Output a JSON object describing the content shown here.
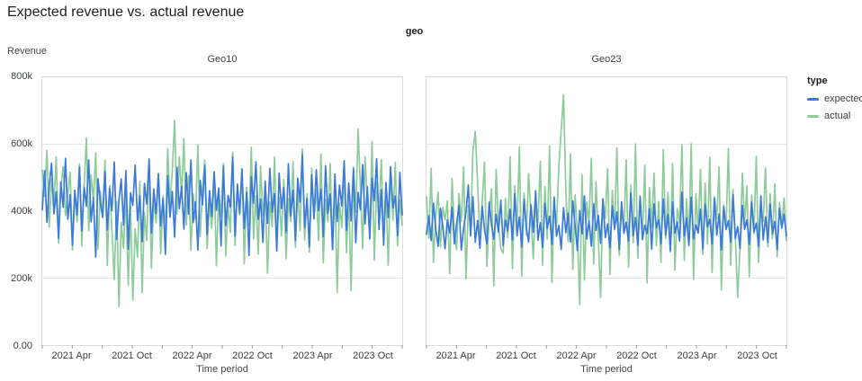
{
  "header": {
    "title": "Expected revenue vs. actual revenue"
  },
  "chart_data": {
    "type": "line",
    "title": "Expected revenue vs. actual revenue",
    "facet_field": "geo",
    "xlabel": "Time period",
    "ylabel": "Revenue",
    "ylim": [
      0,
      800000
    ],
    "y_max_k": 800,
    "value_unit": "thousands (k)",
    "x_domain": {
      "start": "2021 Jan",
      "end": "2024 Jan",
      "months": 36,
      "frequency": "weekly"
    },
    "x_domain_months": 36,
    "grid": "horizontal-only",
    "legend_position": "right",
    "y_ticks": [
      {
        "v": 800,
        "label": "800k"
      },
      {
        "v": 600,
        "label": "600k"
      },
      {
        "v": 400,
        "label": "400k"
      },
      {
        "v": 200,
        "label": "200k"
      },
      {
        "v": 0,
        "label": "0.00"
      }
    ],
    "x_ticks": [
      {
        "m": 3,
        "label": "2021 Apr"
      },
      {
        "m": 9,
        "label": "2021 Oct"
      },
      {
        "m": 15,
        "label": "2022 Apr"
      },
      {
        "m": 21,
        "label": "2022 Oct"
      },
      {
        "m": 27,
        "label": "2023 Apr"
      },
      {
        "m": 33,
        "label": "2023 Oct"
      }
    ],
    "x_minor_ticks_months": [
      0,
      3,
      6,
      9,
      12,
      15,
      18,
      21,
      24,
      27,
      30,
      33,
      36
    ],
    "legend": {
      "title": "type",
      "entries": [
        {
          "label": "expected",
          "color": "#3b79db"
        },
        {
          "label": "actual",
          "color": "#8ecb9b"
        }
      ]
    },
    "facets": [
      {
        "title": "Geo10",
        "series": [
          {
            "name": "expected",
            "values": [
              404,
              521,
              367,
              476,
              543,
              392,
              458,
              319,
              487,
              412,
              558,
              376,
              449,
              298,
              463,
              389,
              532,
              341,
              472,
              415,
              553,
              368,
              441,
              263,
              497,
              426,
              381,
              519,
              344,
              468,
              402,
              547,
              316,
              433,
              496,
              359,
              521,
              287,
              455,
              417,
              538,
              372,
              446,
              309,
              483,
              421,
              556,
              334,
              467,
              393,
              512,
              356,
              438,
              271,
              506,
              382,
              459,
              323,
              531,
              407,
              474,
              347,
              515,
              391,
              553,
              366,
              428,
              284,
              492,
              419,
              537,
              331,
              461,
              385,
              518,
              403,
              469,
              296,
              534,
              357,
              447,
              412,
              563,
              326,
              481,
              394,
              526,
              348,
              457,
              268,
              503,
              423,
              547,
              375,
              436,
              307,
              489,
              364,
              528,
              397,
              452,
              281,
              514,
              408,
              471,
              336,
              542,
              386,
              463,
              312,
              499,
              427,
              569,
              351,
              438,
              293,
              508,
              377,
              524,
              401,
              466,
              324,
              536,
              394,
              451,
              285,
              511,
              369,
              478,
              416,
              551,
              343,
              484,
              371,
              527,
              306,
              456,
              404,
              539,
              362,
              473,
              317,
              498,
              431,
              556,
              346,
              464,
              298,
              486,
              381,
              533,
              409,
              445,
              327,
              516,
              389
            ]
          },
          {
            "name": "actual",
            "values": [
              523,
              444,
              581,
              352,
              496,
              418,
              562,
              305,
              471,
              533,
              387,
              449,
              516,
              284,
              452,
              368,
              541,
              296,
              478,
              619,
              342,
              508,
              433,
              574,
              287,
              461,
              389,
              552,
              238,
              476,
              341,
              196,
              428,
              115,
              367,
              289,
              453,
              178,
              412,
              134,
              348,
              262,
              489,
              157,
              396,
              312,
              548,
              229,
              437,
              365,
              512,
              273,
              446,
              338,
              587,
              415,
              524,
              671,
              392,
              563,
              448,
              617,
              359,
              506,
              283,
              451,
              376,
              598,
              324,
              467,
              552,
              288,
              426,
              349,
              513,
              237,
              458,
              386,
              542,
              266,
              419,
              337,
              576,
              298,
              461,
              388,
              527,
              243,
              472,
              356,
              591,
              318,
              446,
              272,
              534,
              387,
              469,
              215,
              428,
              353,
              562,
              296,
              441,
              327,
              495,
              258,
              437,
              369,
              548,
              292,
              463,
              341,
              586,
              314,
              452,
              278,
              529,
              383,
              466,
              312,
              571,
              246,
              435,
              368,
              542,
              289,
              478,
              157,
              424,
              351,
              518,
              276,
              449,
              163,
              532,
              397,
              645,
              472,
              288,
              563,
              426,
              337,
              608,
              254,
              487,
              392,
              554,
              318,
              462,
              239,
              515,
              373,
              546,
              297,
              433,
              358
            ]
          }
        ]
      },
      {
        "title": "Geo23",
        "series": [
          {
            "name": "expected",
            "values": [
              331,
              386,
              312,
              424,
              347,
              295,
              408,
              356,
              288,
              374,
              335,
              412,
              302,
              363,
              417,
              284,
              351,
              396,
              478,
              326,
              443,
              307,
              372,
              289,
              415,
              344,
              303,
              427,
              358,
              316,
              391,
              337,
              433,
              297,
              373,
              341,
              406,
              314,
              452,
              327,
              382,
              293,
              436,
              351,
              308,
              419,
              337,
              461,
              313,
              366,
              292,
              424,
              348,
              385,
              301,
              442,
              325,
              357,
              286,
              411,
              336,
              394,
              308,
              431,
              355,
              283,
              402,
              332,
              446,
              317,
              371,
              296,
              422,
              343,
              387,
              304,
              437,
              321,
              362,
              291,
              416,
              347,
              398,
              285,
              428,
              334,
              367,
              310,
              455,
              326,
              381,
              298,
              443,
              315,
              358,
              333,
              407,
              287,
              422,
              351,
              374,
              303,
              436,
              328,
              391,
              282,
              428,
              334,
              368,
              311,
              457,
              326,
              380,
              297,
              442,
              317,
              359,
              335,
              406,
              287,
              421,
              353,
              376,
              302,
              438,
              328,
              392,
              284,
              413,
              345,
              372,
              307,
              449,
              318,
              354,
              288,
              417,
              346,
              374,
              301,
              427,
              338,
              364,
              295,
              446,
              314,
              383,
              307,
              421,
              332,
              369,
              286,
              408,
              349,
              391,
              326
            ]
          },
          {
            "name": "actual",
            "values": [
              442,
              319,
              528,
              247,
              386,
              457,
              293,
              412,
              374,
              431,
              214,
              497,
              338,
              285,
              453,
              369,
              532,
              198,
              417,
              346,
              579,
              638,
              484,
              313,
              428,
              547,
              236,
              392,
              467,
              177,
              525,
              359,
              288,
              274,
              438,
              321,
              563,
              229,
              476,
              347,
              592,
              205,
              454,
              329,
              512,
              389,
              258,
              434,
              366,
              549,
              239,
              473,
              316,
              595,
              187,
              422,
              358,
              537,
              641,
              748,
              466,
              309,
              572,
              225,
              449,
              333,
              121,
              508,
              194,
              427,
              365,
              558,
              242,
              488,
              317,
              143,
              436,
              379,
              527,
              211,
              462,
              344,
              589,
              268,
              415,
              337,
              553,
              232,
              479,
              306,
              601,
              259,
              447,
              323,
              538,
              186,
              471,
              352,
              514,
              297,
              429,
              247,
              584,
              318,
              456,
              278,
              542,
              224,
              408,
              365,
              599,
              253,
              437,
              313,
              602,
              196,
              452,
              339,
              525,
              271,
              484,
              302,
              561,
              217,
              443,
              378,
              532,
              165,
              419,
              351,
              587,
              239,
              465,
              327,
              142,
              288,
              513,
              359,
              476,
              204,
              448,
              332,
              564,
              247,
              411,
              369,
              529,
              293,
              452,
              318,
              481,
              264,
              426,
              357,
              439,
              311
            ]
          }
        ]
      }
    ]
  }
}
